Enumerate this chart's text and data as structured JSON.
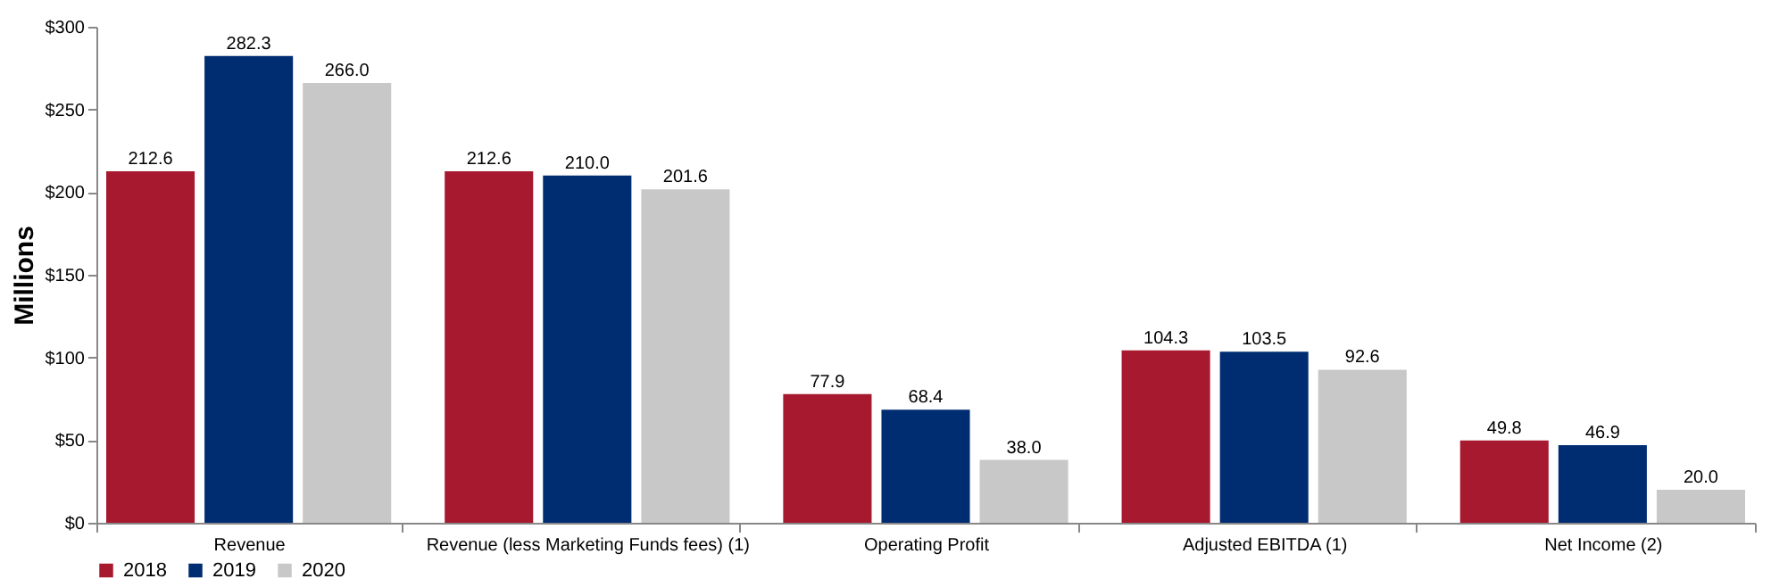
{
  "chart_data": {
    "type": "bar",
    "ylabel": "Millions",
    "categories": [
      "Revenue",
      "Revenue (less Marketing Funds fees) (1)",
      "Operating Profit",
      "Adjusted EBITDA (1)",
      "Net Income (2)"
    ],
    "series": [
      {
        "name": "2018",
        "color": "#a6192e",
        "values": [
          212.6,
          212.6,
          77.9,
          104.3,
          49.8
        ],
        "value_labels": [
          "212.6",
          "212.6",
          "77.9",
          "104.3",
          "49.8"
        ]
      },
      {
        "name": "2019",
        "color": "#002d72",
        "values": [
          282.3,
          210.0,
          68.4,
          103.5,
          46.9
        ],
        "value_labels": [
          "282.3",
          "210.0",
          "68.4",
          "103.5",
          "46.9"
        ]
      },
      {
        "name": "2020",
        "color": "#c8c8c8",
        "values": [
          266.0,
          201.6,
          38.0,
          92.6,
          20.0
        ],
        "value_labels": [
          "266.0",
          "201.6",
          "38.0",
          "92.6",
          "20.0"
        ]
      }
    ],
    "ylim": [
      0,
      300
    ],
    "yticks": [
      {
        "value": 0,
        "label": "$0"
      },
      {
        "value": 50,
        "label": "$50"
      },
      {
        "value": 100,
        "label": "$100"
      },
      {
        "value": 150,
        "label": "$150"
      },
      {
        "value": 200,
        "label": "$200"
      },
      {
        "value": 250,
        "label": "$250"
      },
      {
        "value": 300,
        "label": "$300"
      }
    ],
    "grid": false,
    "legend": "bottom"
  }
}
